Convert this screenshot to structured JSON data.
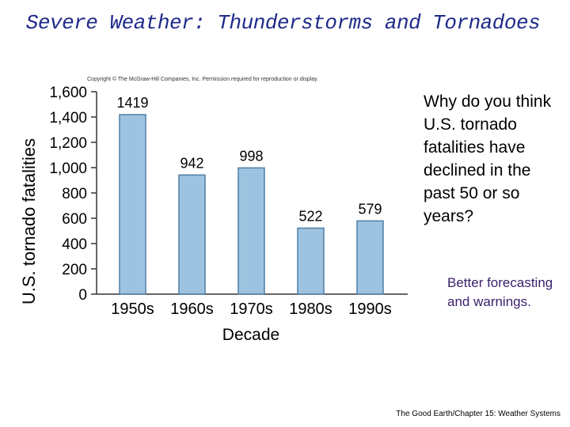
{
  "slide": {
    "title": "Severe Weather: Thunderstorms and Tornadoes",
    "copyright": "Copyright © The McGraw-Hill Companies, Inc. Permission required for reproduction or display.",
    "question": "Why do you think U.S. tornado fatalities have declined in the past 50 or so years?",
    "answer": "Better forecasting and warnings.",
    "footer": "The Good Earth/Chapter 15: Weather Systems"
  },
  "chart_data": {
    "type": "bar",
    "title": "",
    "categories": [
      "1950s",
      "1960s",
      "1970s",
      "1980s",
      "1990s"
    ],
    "values": [
      1419,
      942,
      998,
      522,
      579
    ],
    "data_labels": [
      "1419",
      "942",
      "998",
      "522",
      "579"
    ],
    "xlabel": "Decade",
    "ylabel": "U.S. tornado fatalities",
    "ylim": [
      0,
      1600
    ],
    "yticks": [
      0,
      200,
      400,
      600,
      800,
      1000,
      1200,
      1400,
      1600
    ],
    "ytick_labels": [
      "0",
      "200",
      "400",
      "600",
      "800",
      "1,000",
      "1,200",
      "1,400",
      "1,600"
    ],
    "grid": false,
    "colors": {
      "bar_fill": "#9ec3e0",
      "bar_stroke": "#4f7fa6",
      "axis": "#333333"
    }
  }
}
